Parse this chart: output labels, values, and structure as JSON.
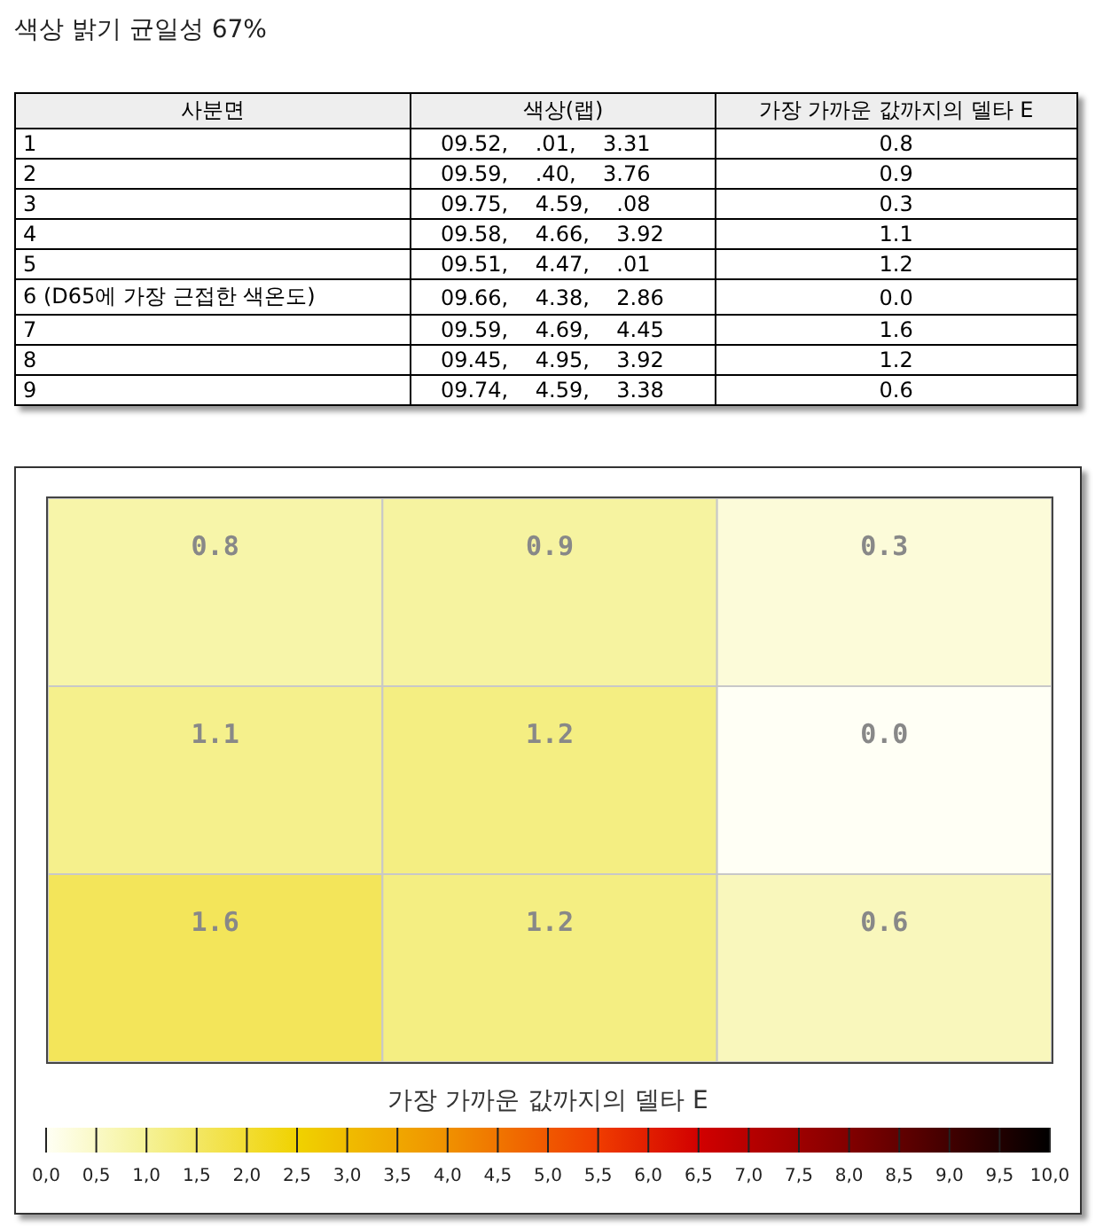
{
  "chart_data": [
    {
      "type": "other",
      "title": "색상 밝기 균일성 67%",
      "categories": [
        "사분면",
        "색상(랩)",
        "가장 가까운 값까지의 델타 E"
      ],
      "annotations": [
        "1",
        "09.52,    .01,    3.31",
        "0.8",
        "2",
        "09.59,    .40,    3.76",
        "0.9",
        "3",
        "09.75,    4.59,    .08",
        "0.3",
        "4",
        "09.58,    4.66,    3.92",
        "1.1",
        "5",
        "09.51,    4.47,    .01",
        "1.2",
        "6 (D65에 가장 근접한 색온도)",
        "09.66,    4.38,    2.86",
        "0.0",
        "7",
        "09.59,    4.69,    4.45",
        "1.6",
        "8",
        "09.45,    4.95,    3.92",
        "1.2",
        "9",
        "09.74,    4.59,    3.38",
        "0.6"
      ]
    },
    {
      "type": "heatmap",
      "categories": [
        null,
        null,
        null
      ],
      "y_categories": [
        null,
        null,
        null
      ],
      "cells": [
        [
          0.8,
          0.9,
          0.3
        ],
        [
          1.1,
          1.2,
          0.0
        ],
        [
          1.6,
          1.2,
          0.6
        ]
      ],
      "cell_labels": [
        [
          "0.8",
          "0.9",
          "0.3"
        ],
        [
          "1.1",
          "1.2",
          "0.0"
        ],
        [
          "1.6",
          "1.2",
          "0.6"
        ]
      ],
      "clabel": "가장 가까운 값까지의 델타 E",
      "clim": [
        0,
        10
      ],
      "cticks": [
        {
          "value": 0,
          "label": "0,0"
        },
        {
          "value": 0.5,
          "label": "0,5"
        },
        {
          "value": 1,
          "label": "1,0"
        },
        {
          "value": 1.5,
          "label": "1,5"
        },
        {
          "value": 2,
          "label": "2,0"
        },
        {
          "value": 2.5,
          "label": "2,5"
        },
        {
          "value": 3,
          "label": "3,0"
        },
        {
          "value": 3.5,
          "label": "3,5"
        },
        {
          "value": 4,
          "label": "4,0"
        },
        {
          "value": 4.5,
          "label": "4,5"
        },
        {
          "value": 5,
          "label": "5,0"
        },
        {
          "value": 5.5,
          "label": "5,5"
        },
        {
          "value": 6,
          "label": "6,0"
        },
        {
          "value": 6.5,
          "label": "6,5"
        },
        {
          "value": 7,
          "label": "7,0"
        },
        {
          "value": 7.5,
          "label": "7,5"
        },
        {
          "value": 8,
          "label": "8,0"
        },
        {
          "value": 8.5,
          "label": "8,5"
        },
        {
          "value": 9,
          "label": "9,0"
        },
        {
          "value": 9.5,
          "label": "9,5"
        },
        {
          "value": 10,
          "label": "10,0"
        }
      ]
    }
  ]
}
